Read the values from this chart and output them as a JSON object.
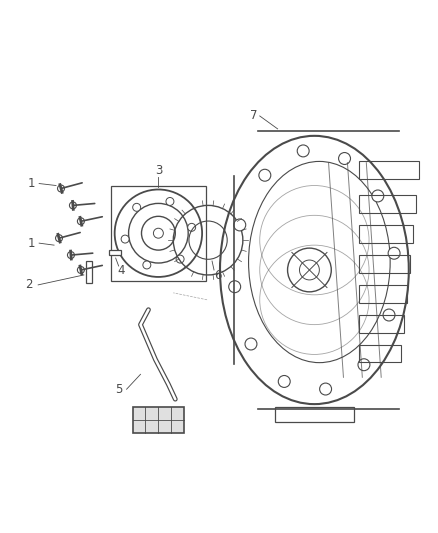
{
  "background_color": "#ffffff",
  "line_color": "#4a4a4a",
  "label_color": "#222222",
  "fig_width": 4.38,
  "fig_height": 5.33,
  "dpi": 100
}
